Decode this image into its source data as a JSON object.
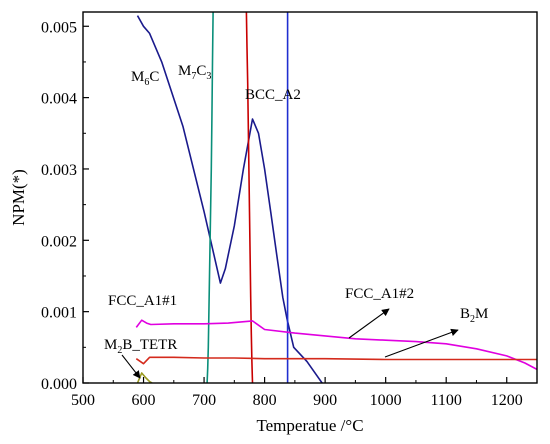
{
  "chart_data": {
    "type": "line",
    "xlabel": "Temperatue /°C",
    "ylabel": "NPM(*)",
    "xlim": [
      500,
      1250
    ],
    "ylim": [
      0,
      0.0052
    ],
    "x_ticks": [
      500,
      600,
      700,
      800,
      900,
      1000,
      1100,
      1200
    ],
    "x_tick_labels": [
      "500",
      "600",
      "700",
      "800",
      "900",
      "1000",
      "1100",
      "1200"
    ],
    "y_ticks": [
      0,
      0.001,
      0.002,
      0.003,
      0.004,
      0.005
    ],
    "y_tick_labels": [
      "0.000",
      "0.001",
      "0.002",
      "0.003",
      "0.004",
      "0.005"
    ],
    "grid": false,
    "series": [
      {
        "id": "m6c",
        "color": "#1a1a8c",
        "label": {
          "main": "M",
          "sub": "6",
          "tail": "C"
        },
        "x": [
          590,
          600,
          610,
          630,
          665,
          700,
          727,
          735,
          750,
          765,
          780,
          790,
          800,
          810,
          820,
          830,
          837,
          848,
          870,
          895
        ],
        "y": [
          0.00515,
          0.005,
          0.0049,
          0.0045,
          0.0036,
          0.0024,
          0.0014,
          0.0016,
          0.0022,
          0.003,
          0.0037,
          0.0035,
          0.003,
          0.0024,
          0.0018,
          0.0012,
          0.0009,
          0.0005,
          0.0003,
          0.0
        ]
      },
      {
        "id": "m7c3",
        "color": "#0a8f7a",
        "label": {
          "main": "M",
          "sub": "7",
          "tail": "C",
          "sub2": "3"
        },
        "x": [
          705,
          706,
          707,
          708,
          709,
          710,
          711,
          712,
          713,
          714,
          715
        ],
        "y": [
          0.0,
          0.0002,
          0.0005,
          0.001,
          0.0015,
          0.002,
          0.0025,
          0.003,
          0.0037,
          0.0045,
          0.0052
        ]
      },
      {
        "id": "bcc-a2",
        "color": "#c80000",
        "label": {
          "main": "BCC_A2"
        },
        "x": [
          770,
          771,
          772,
          773,
          774,
          775,
          776,
          777,
          778,
          779,
          780
        ],
        "y": [
          0.0052,
          0.0047,
          0.0042,
          0.0036,
          0.003,
          0.0024,
          0.0018,
          0.0012,
          0.0007,
          0.0003,
          0.0
        ]
      },
      {
        "id": "b2m",
        "color": "#1f2fd0",
        "label": {
          "main": "B",
          "sub": "2",
          "tail": "M"
        },
        "x": [
          838,
          838,
          838,
          838,
          838,
          838,
          838,
          838,
          838,
          838,
          838
        ],
        "y": [
          0.0052,
          0.0047,
          0.0042,
          0.0036,
          0.003,
          0.0024,
          0.0018,
          0.0012,
          0.0007,
          0.0003,
          0.0
        ]
      },
      {
        "id": "fcc-a1-1",
        "color": "#e000e0",
        "label": {
          "main": "FCC_A1#1"
        },
        "x": [
          588,
          597,
          605,
          612,
          650,
          700,
          740,
          780,
          790,
          800,
          850,
          900,
          950,
          1000,
          1050,
          1100,
          1150,
          1200,
          1230,
          1250
        ],
        "y": [
          0.00078,
          0.00088,
          0.00084,
          0.00082,
          0.00083,
          0.00083,
          0.00084,
          0.00087,
          0.00081,
          0.00075,
          0.0007,
          0.00066,
          0.00062,
          0.0006,
          0.00058,
          0.00055,
          0.00048,
          0.00038,
          0.00028,
          0.00019
        ]
      },
      {
        "id": "fcc-a1-2",
        "color": "#d42a1c",
        "label": {
          "main": "FCC_A1#2"
        },
        "x": [
          588,
          600,
          610,
          650,
          700,
          750,
          800,
          900,
          1000,
          1100,
          1200,
          1250
        ],
        "y": [
          0.00034,
          0.00027,
          0.00036,
          0.00036,
          0.00035,
          0.00035,
          0.00034,
          0.00034,
          0.00033,
          0.00033,
          0.00033,
          0.00033
        ]
      },
      {
        "id": "m2b-tetr",
        "color": "#9a9a20",
        "label": {
          "main": "M",
          "sub": "2",
          "tail": "B_TETR"
        },
        "x": [
          590,
          597,
          604,
          610,
          614
        ],
        "y": [
          0.0,
          0.00014,
          7e-05,
          2e-05,
          0.0
        ]
      }
    ]
  }
}
